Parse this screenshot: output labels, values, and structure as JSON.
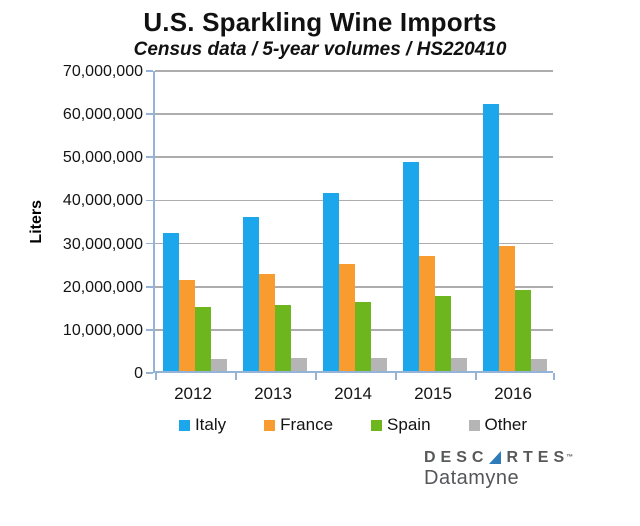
{
  "chart_data": {
    "type": "bar",
    "title": "U.S. Sparkling Wine Imports",
    "subtitle": "Census data / 5-year volumes / HS220410",
    "xlabel": "",
    "ylabel": "Liters",
    "categories": [
      "2012",
      "2013",
      "2014",
      "2015",
      "2016"
    ],
    "series": [
      {
        "name": "Italy",
        "color": "#1CA7EC",
        "values": [
          32000000,
          35800000,
          41200000,
          48500000,
          62000000
        ]
      },
      {
        "name": "France",
        "color": "#F99C30",
        "values": [
          21000000,
          22500000,
          24700000,
          26700000,
          29000000
        ]
      },
      {
        "name": "Spain",
        "color": "#6DB61E",
        "values": [
          14900000,
          15200000,
          16000000,
          17500000,
          18800000
        ]
      },
      {
        "name": "Other",
        "color": "#B5B5B5",
        "values": [
          2800000,
          3000000,
          3000000,
          3000000,
          2900000
        ]
      }
    ],
    "ylim": [
      0,
      70000000
    ],
    "ytick_step": 10000000,
    "ytick_labels": [
      "0",
      "10,000,000",
      "20,000,000",
      "30,000,000",
      "40,000,000",
      "50,000,000",
      "60,000,000",
      "70,000,000"
    ],
    "grid": true,
    "legend_position": "bottom"
  },
  "colors": {
    "axis": "#95B3D7",
    "gridline": "#ADADAD",
    "background": "#FFFFFF"
  },
  "logo": {
    "brand_part1": "DESC",
    "brand_part2": "RTES",
    "trademark": "™",
    "product": "Datamyne",
    "triangle_color": "#2E7CBA"
  }
}
